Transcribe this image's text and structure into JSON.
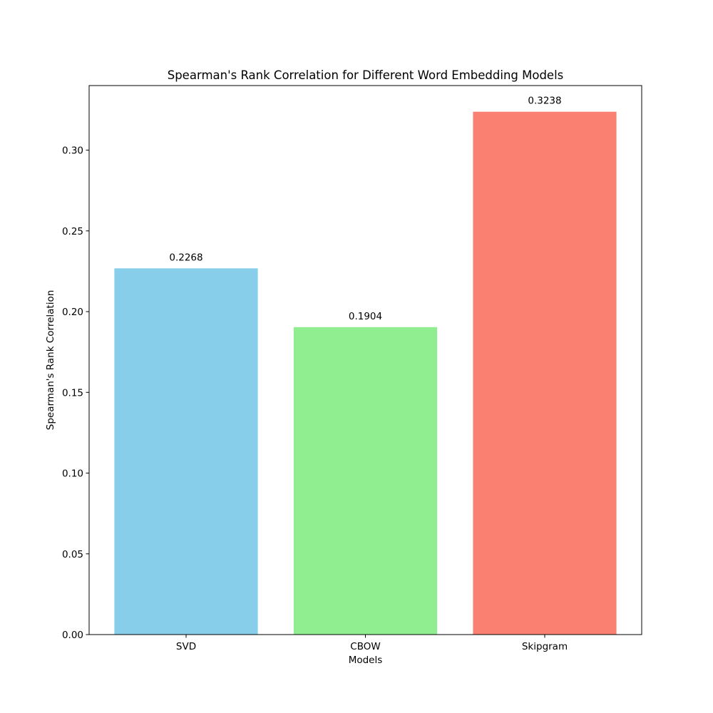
{
  "chart_data": {
    "type": "bar",
    "title": "Spearman's Rank Correlation for Different Word Embedding Models",
    "xlabel": "Models",
    "ylabel": "Spearman's Rank Correlation",
    "categories": [
      "SVD",
      "CBOW",
      "Skipgram"
    ],
    "values": [
      0.2268,
      0.1904,
      0.3238
    ],
    "value_labels": [
      "0.2268",
      "0.1904",
      "0.3238"
    ],
    "colors": [
      "#87ceeb",
      "#90ee90",
      "#fa8072"
    ],
    "ylim": [
      0,
      0.34
    ],
    "yticks": [
      0.0,
      0.05,
      0.1,
      0.15,
      0.2,
      0.25,
      0.3
    ],
    "ytick_labels": [
      "0.00",
      "0.05",
      "0.10",
      "0.15",
      "0.20",
      "0.25",
      "0.30"
    ],
    "grid": false,
    "legend": "none"
  }
}
